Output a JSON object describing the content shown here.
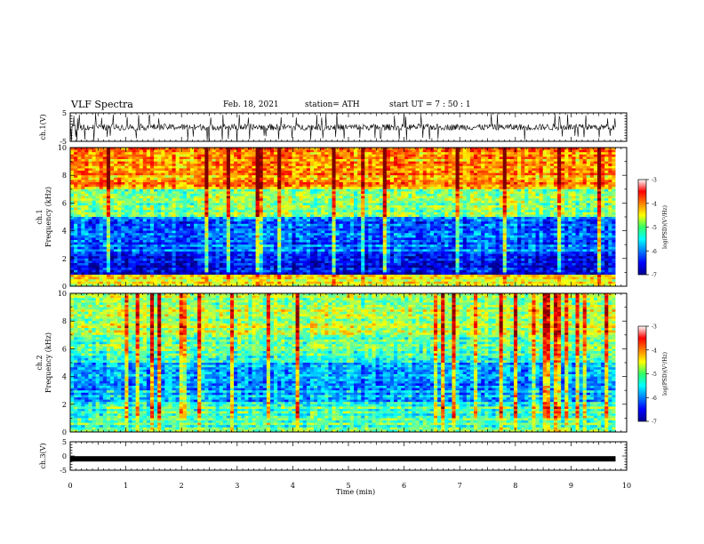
{
  "header": {
    "title": "VLF Spectra",
    "date": "Feb. 18, 2021",
    "station": "station= ATH",
    "start": "start  UT =   7 : 50 : 1"
  },
  "chart_data": [
    {
      "type": "line",
      "name": "ch1-waveform",
      "ylabel": "ch.1(V)",
      "ylim": [
        -5,
        5
      ],
      "yticks": [
        5,
        -5
      ],
      "xlim": [
        0,
        10
      ],
      "shape": "dense noisy oscillation around 0 V with spikes to about ±5 V",
      "data_end_min": 9.8
    },
    {
      "type": "heatmap",
      "name": "ch1-spectrogram",
      "ylabel": "ch.1\nFrequency (kHz)",
      "ylim": [
        0,
        10
      ],
      "yticks": [
        0,
        2,
        4,
        6,
        8,
        10
      ],
      "xlim": [
        0,
        10
      ],
      "data_end_min": 9.8,
      "colorbar": {
        "label": "log(PSD)(V²/Hz)",
        "range": [
          -7,
          -3
        ],
        "ticks": [
          -3,
          -4,
          -5,
          -6,
          -7
        ]
      },
      "approx_profile": [
        {
          "freq_khz": [
            0,
            0.9
          ],
          "log_psd": -4.5
        },
        {
          "freq_khz": [
            0.9,
            2.4
          ],
          "log_psd": -6.6
        },
        {
          "freq_khz": [
            2.4,
            5.0
          ],
          "log_psd": -6.1
        },
        {
          "freq_khz": [
            5.0,
            7.0
          ],
          "log_psd": -4.9
        },
        {
          "freq_khz": [
            7.0,
            10.0
          ],
          "log_psd": -4.1
        }
      ]
    },
    {
      "type": "heatmap",
      "name": "ch2-spectrogram",
      "ylabel": "ch.2\nFrequency (kHz)",
      "ylim": [
        0,
        10
      ],
      "yticks": [
        0,
        2,
        4,
        6,
        8,
        10
      ],
      "xlim": [
        0,
        10
      ],
      "data_end_min": 9.8,
      "colorbar": {
        "label": "log(PSD)(V²/Hz)",
        "range": [
          -7,
          -3
        ],
        "ticks": [
          -3,
          -4,
          -5,
          -6,
          -7
        ]
      },
      "approx_profile": [
        {
          "freq_khz": [
            0,
            2.2
          ],
          "log_psd": -5.2
        },
        {
          "freq_khz": [
            2.2,
            5.0
          ],
          "log_psd": -5.8
        },
        {
          "freq_khz": [
            5.0,
            7.0
          ],
          "log_psd": -5.2
        },
        {
          "freq_khz": [
            7.0,
            10.0
          ],
          "log_psd": -4.8
        }
      ]
    },
    {
      "type": "line",
      "name": "ch3-waveform",
      "ylabel": "ch.3(V)",
      "ylim": [
        -5,
        5
      ],
      "yticks": [
        5,
        0,
        -5
      ],
      "xlim": [
        0,
        10
      ],
      "xticks": [
        0,
        1,
        2,
        3,
        4,
        5,
        6,
        7,
        8,
        9,
        10
      ],
      "xlabel": "Time (min)",
      "shape": "flat band near -1 V",
      "level_v": -1,
      "data_end_min": 9.8
    }
  ]
}
